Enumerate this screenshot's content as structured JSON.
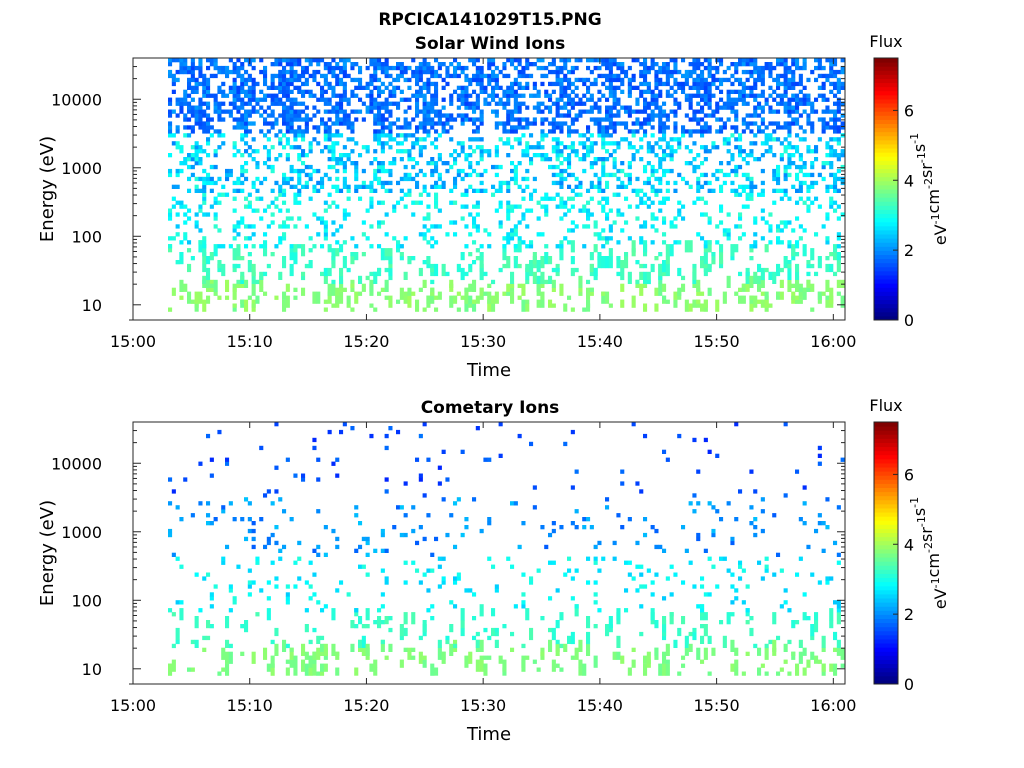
{
  "figure": {
    "title": "RPCICA141029T15.PNG"
  },
  "colormap": "jet",
  "chart_data": [
    {
      "type": "heatmap",
      "title": "Solar Wind Ions",
      "xlabel": "Time",
      "ylabel": "Energy (eV)",
      "x_range": [
        "15:00",
        "16:01"
      ],
      "x_ticks": [
        "15:00",
        "15:10",
        "15:20",
        "15:30",
        "15:40",
        "15:50",
        "16:00"
      ],
      "y_scale": "log",
      "y_range": [
        6,
        40000
      ],
      "y_ticks": [
        "10",
        "100",
        "1000",
        "10000"
      ],
      "colorbar": {
        "title": "Flux",
        "label": "eV-1cm-2sr-1s-1",
        "label_base": [
          "eV",
          "cm",
          "sr",
          "s"
        ],
        "label_exp": [
          "-1",
          "-2",
          "-1",
          "-1"
        ],
        "range": [
          0,
          7.5
        ],
        "ticks": [
          "0",
          "2",
          "4",
          "6"
        ]
      },
      "data_start_minute": 3,
      "data_end_minute": 61,
      "grid": false
    },
    {
      "type": "heatmap",
      "title": "Cometary Ions",
      "xlabel": "Time",
      "ylabel": "Energy (eV)",
      "x_range": [
        "15:00",
        "16:01"
      ],
      "x_ticks": [
        "15:00",
        "15:10",
        "15:20",
        "15:30",
        "15:40",
        "15:50",
        "16:00"
      ],
      "y_scale": "log",
      "y_range": [
        6,
        40000
      ],
      "y_ticks": [
        "10",
        "100",
        "1000",
        "10000"
      ],
      "colorbar": {
        "title": "Flux",
        "label": "eV-1cm-2sr-1s-1",
        "label_base": [
          "eV",
          "cm",
          "sr",
          "s"
        ],
        "label_exp": [
          "-1",
          "-2",
          "-1",
          "-1"
        ],
        "range": [
          0,
          7.5
        ],
        "ticks": [
          "0",
          "2",
          "4",
          "6"
        ]
      },
      "data_start_minute": 3,
      "data_end_minute": 61,
      "grid": false
    }
  ]
}
